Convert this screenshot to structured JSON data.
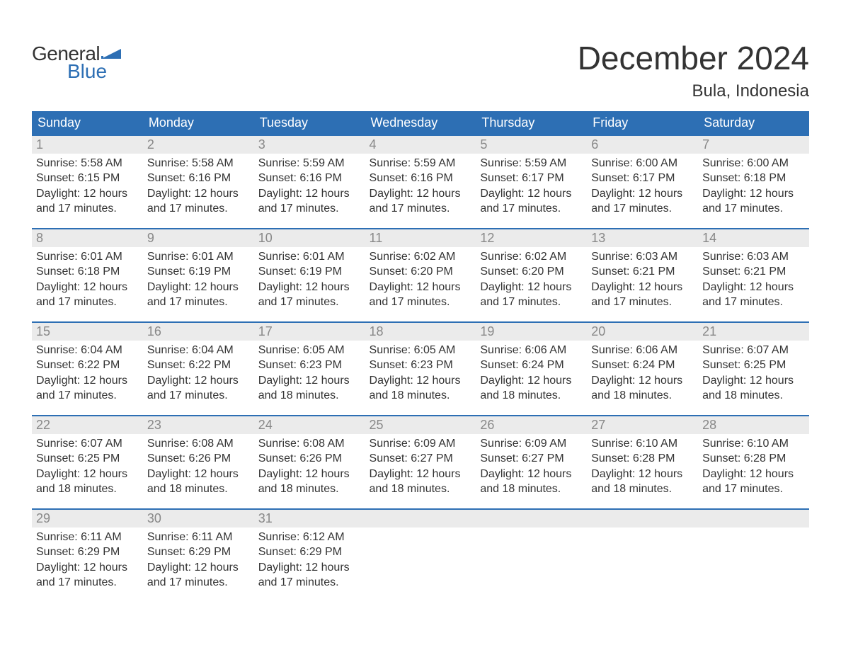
{
  "brand": {
    "word1": "General",
    "word2": "Blue",
    "accent_color": "#2d6fb4"
  },
  "title": "December 2024",
  "location": "Bula, Indonesia",
  "style": {
    "header_bg": "#2d6fb4",
    "header_text": "#ffffff",
    "daynum_bg": "#ebebeb",
    "daynum_color": "#888888",
    "row_border": "#2d6fb4",
    "body_text": "#333333",
    "page_bg": "#ffffff",
    "title_fontsize": 46,
    "subtitle_fontsize": 24,
    "th_fontsize": 18,
    "cell_fontsize": 16
  },
  "weekdays": [
    "Sunday",
    "Monday",
    "Tuesday",
    "Wednesday",
    "Thursday",
    "Friday",
    "Saturday"
  ],
  "labels": {
    "sunrise": "Sunrise:",
    "sunset": "Sunset:",
    "daylight": "Daylight:"
  },
  "days": [
    {
      "n": 1,
      "sunrise": "5:58 AM",
      "sunset": "6:15 PM",
      "daylight": "12 hours and 17 minutes."
    },
    {
      "n": 2,
      "sunrise": "5:58 AM",
      "sunset": "6:16 PM",
      "daylight": "12 hours and 17 minutes."
    },
    {
      "n": 3,
      "sunrise": "5:59 AM",
      "sunset": "6:16 PM",
      "daylight": "12 hours and 17 minutes."
    },
    {
      "n": 4,
      "sunrise": "5:59 AM",
      "sunset": "6:16 PM",
      "daylight": "12 hours and 17 minutes."
    },
    {
      "n": 5,
      "sunrise": "5:59 AM",
      "sunset": "6:17 PM",
      "daylight": "12 hours and 17 minutes."
    },
    {
      "n": 6,
      "sunrise": "6:00 AM",
      "sunset": "6:17 PM",
      "daylight": "12 hours and 17 minutes."
    },
    {
      "n": 7,
      "sunrise": "6:00 AM",
      "sunset": "6:18 PM",
      "daylight": "12 hours and 17 minutes."
    },
    {
      "n": 8,
      "sunrise": "6:01 AM",
      "sunset": "6:18 PM",
      "daylight": "12 hours and 17 minutes."
    },
    {
      "n": 9,
      "sunrise": "6:01 AM",
      "sunset": "6:19 PM",
      "daylight": "12 hours and 17 minutes."
    },
    {
      "n": 10,
      "sunrise": "6:01 AM",
      "sunset": "6:19 PM",
      "daylight": "12 hours and 17 minutes."
    },
    {
      "n": 11,
      "sunrise": "6:02 AM",
      "sunset": "6:20 PM",
      "daylight": "12 hours and 17 minutes."
    },
    {
      "n": 12,
      "sunrise": "6:02 AM",
      "sunset": "6:20 PM",
      "daylight": "12 hours and 17 minutes."
    },
    {
      "n": 13,
      "sunrise": "6:03 AM",
      "sunset": "6:21 PM",
      "daylight": "12 hours and 17 minutes."
    },
    {
      "n": 14,
      "sunrise": "6:03 AM",
      "sunset": "6:21 PM",
      "daylight": "12 hours and 17 minutes."
    },
    {
      "n": 15,
      "sunrise": "6:04 AM",
      "sunset": "6:22 PM",
      "daylight": "12 hours and 17 minutes."
    },
    {
      "n": 16,
      "sunrise": "6:04 AM",
      "sunset": "6:22 PM",
      "daylight": "12 hours and 17 minutes."
    },
    {
      "n": 17,
      "sunrise": "6:05 AM",
      "sunset": "6:23 PM",
      "daylight": "12 hours and 18 minutes."
    },
    {
      "n": 18,
      "sunrise": "6:05 AM",
      "sunset": "6:23 PM",
      "daylight": "12 hours and 18 minutes."
    },
    {
      "n": 19,
      "sunrise": "6:06 AM",
      "sunset": "6:24 PM",
      "daylight": "12 hours and 18 minutes."
    },
    {
      "n": 20,
      "sunrise": "6:06 AM",
      "sunset": "6:24 PM",
      "daylight": "12 hours and 18 minutes."
    },
    {
      "n": 21,
      "sunrise": "6:07 AM",
      "sunset": "6:25 PM",
      "daylight": "12 hours and 18 minutes."
    },
    {
      "n": 22,
      "sunrise": "6:07 AM",
      "sunset": "6:25 PM",
      "daylight": "12 hours and 18 minutes."
    },
    {
      "n": 23,
      "sunrise": "6:08 AM",
      "sunset": "6:26 PM",
      "daylight": "12 hours and 18 minutes."
    },
    {
      "n": 24,
      "sunrise": "6:08 AM",
      "sunset": "6:26 PM",
      "daylight": "12 hours and 18 minutes."
    },
    {
      "n": 25,
      "sunrise": "6:09 AM",
      "sunset": "6:27 PM",
      "daylight": "12 hours and 18 minutes."
    },
    {
      "n": 26,
      "sunrise": "6:09 AM",
      "sunset": "6:27 PM",
      "daylight": "12 hours and 18 minutes."
    },
    {
      "n": 27,
      "sunrise": "6:10 AM",
      "sunset": "6:28 PM",
      "daylight": "12 hours and 18 minutes."
    },
    {
      "n": 28,
      "sunrise": "6:10 AM",
      "sunset": "6:28 PM",
      "daylight": "12 hours and 17 minutes."
    },
    {
      "n": 29,
      "sunrise": "6:11 AM",
      "sunset": "6:29 PM",
      "daylight": "12 hours and 17 minutes."
    },
    {
      "n": 30,
      "sunrise": "6:11 AM",
      "sunset": "6:29 PM",
      "daylight": "12 hours and 17 minutes."
    },
    {
      "n": 31,
      "sunrise": "6:12 AM",
      "sunset": "6:29 PM",
      "daylight": "12 hours and 17 minutes."
    }
  ],
  "start_weekday_index": 0,
  "trailing_empty": 4
}
